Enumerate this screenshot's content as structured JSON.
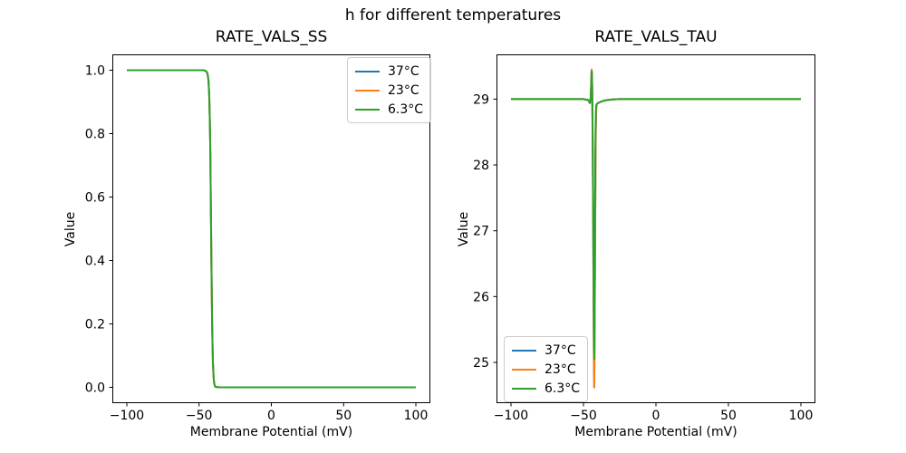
{
  "figure": {
    "suptitle": "h for different temperatures",
    "background_color": "#ffffff",
    "text_color": "#000000"
  },
  "chart_data": [
    {
      "type": "line",
      "title": "RATE_VALS_SS",
      "xlabel": "Membrane Potential (mV)",
      "ylabel": "Value",
      "xlim": [
        -110,
        110
      ],
      "ylim": [
        -0.05,
        1.05
      ],
      "xticks": [
        -100,
        -50,
        0,
        50,
        100
      ],
      "xtick_labels": [
        "−100",
        "−50",
        "0",
        "50",
        "100"
      ],
      "yticks": [
        0.0,
        0.2,
        0.4,
        0.6,
        0.8,
        1.0
      ],
      "ytick_labels": [
        "0.0",
        "0.2",
        "0.4",
        "0.6",
        "0.8",
        "1.0"
      ],
      "grid": false,
      "legend_position": "upper right",
      "series": [
        {
          "name": "37°C",
          "color": "#1f77b4",
          "points": [
            [
              -100,
              1.0
            ],
            [
              -80,
              1.0
            ],
            [
              -60,
              1.0
            ],
            [
              -50,
              1.0
            ],
            [
              -47,
              1.0
            ],
            [
              -46,
              0.999
            ],
            [
              -45.5,
              0.998
            ],
            [
              -45,
              0.996
            ],
            [
              -44.5,
              0.993
            ],
            [
              -44,
              0.985
            ],
            [
              -43.5,
              0.968
            ],
            [
              -43,
              0.925
            ],
            [
              -42.5,
              0.83
            ],
            [
              -42.2,
              0.73
            ],
            [
              -42,
              0.64
            ],
            [
              -41.8,
              0.55
            ],
            [
              -41.7,
              0.5
            ],
            [
              -41.5,
              0.41
            ],
            [
              -41.2,
              0.28
            ],
            [
              -41,
              0.21
            ],
            [
              -40.7,
              0.13
            ],
            [
              -40.4,
              0.08
            ],
            [
              -40,
              0.035
            ],
            [
              -39.6,
              0.015
            ],
            [
              -39.2,
              0.006
            ],
            [
              -38.8,
              0.002
            ],
            [
              -38,
              0.001
            ],
            [
              -36,
              0.0
            ],
            [
              -30,
              0.0
            ],
            [
              -20,
              0.0
            ],
            [
              0,
              0.0
            ],
            [
              50,
              0.0
            ],
            [
              100,
              0.0
            ]
          ]
        },
        {
          "name": "23°C",
          "color": "#ff7f0e",
          "points": [
            [
              -100,
              1.0
            ],
            [
              -80,
              1.0
            ],
            [
              -60,
              1.0
            ],
            [
              -50,
              1.0
            ],
            [
              -47,
              1.0
            ],
            [
              -46,
              0.999
            ],
            [
              -45.5,
              0.998
            ],
            [
              -45,
              0.996
            ],
            [
              -44.5,
              0.993
            ],
            [
              -44,
              0.985
            ],
            [
              -43.5,
              0.968
            ],
            [
              -43,
              0.925
            ],
            [
              -42.5,
              0.83
            ],
            [
              -42.2,
              0.73
            ],
            [
              -42,
              0.64
            ],
            [
              -41.8,
              0.55
            ],
            [
              -41.7,
              0.5
            ],
            [
              -41.5,
              0.41
            ],
            [
              -41.2,
              0.28
            ],
            [
              -41,
              0.21
            ],
            [
              -40.7,
              0.13
            ],
            [
              -40.4,
              0.08
            ],
            [
              -40,
              0.035
            ],
            [
              -39.6,
              0.015
            ],
            [
              -39.2,
              0.006
            ],
            [
              -38.8,
              0.002
            ],
            [
              -38,
              0.001
            ],
            [
              -36,
              0.0
            ],
            [
              -30,
              0.0
            ],
            [
              -20,
              0.0
            ],
            [
              0,
              0.0
            ],
            [
              50,
              0.0
            ],
            [
              100,
              0.0
            ]
          ]
        },
        {
          "name": "6.3°C",
          "color": "#2ca02c",
          "points": [
            [
              -100,
              1.0
            ],
            [
              -80,
              1.0
            ],
            [
              -60,
              1.0
            ],
            [
              -50,
              1.0
            ],
            [
              -47,
              1.0
            ],
            [
              -46,
              0.999
            ],
            [
              -45.5,
              0.998
            ],
            [
              -45,
              0.996
            ],
            [
              -44.5,
              0.993
            ],
            [
              -44,
              0.985
            ],
            [
              -43.5,
              0.968
            ],
            [
              -43,
              0.925
            ],
            [
              -42.5,
              0.83
            ],
            [
              -42.2,
              0.73
            ],
            [
              -42,
              0.64
            ],
            [
              -41.8,
              0.55
            ],
            [
              -41.7,
              0.5
            ],
            [
              -41.5,
              0.41
            ],
            [
              -41.2,
              0.28
            ],
            [
              -41,
              0.21
            ],
            [
              -40.7,
              0.13
            ],
            [
              -40.4,
              0.08
            ],
            [
              -40,
              0.035
            ],
            [
              -39.6,
              0.015
            ],
            [
              -39.2,
              0.006
            ],
            [
              -38.8,
              0.002
            ],
            [
              -38,
              0.001
            ],
            [
              -36,
              0.0
            ],
            [
              -30,
              0.0
            ],
            [
              -20,
              0.0
            ],
            [
              0,
              0.0
            ],
            [
              50,
              0.0
            ],
            [
              100,
              0.0
            ]
          ]
        }
      ]
    },
    {
      "type": "line",
      "title": "RATE_VALS_TAU",
      "xlabel": "Membrane Potential (mV)",
      "ylabel": "Value",
      "xlim": [
        -110,
        110
      ],
      "ylim": [
        24.38,
        29.68
      ],
      "xticks": [
        -100,
        -50,
        0,
        50,
        100
      ],
      "xtick_labels": [
        "−100",
        "−50",
        "0",
        "50",
        "100"
      ],
      "yticks": [
        25,
        26,
        27,
        28,
        29
      ],
      "ytick_labels": [
        "25",
        "26",
        "27",
        "28",
        "29"
      ],
      "grid": false,
      "legend_position": "lower left",
      "series": [
        {
          "name": "37°C",
          "color": "#1f77b4",
          "points": [
            [
              -100,
              29.0
            ],
            [
              -80,
              29.0
            ],
            [
              -60,
              29.0
            ],
            [
              -50,
              29.0
            ],
            [
              -48,
              28.99
            ],
            [
              -47,
              28.99
            ],
            [
              -46.2,
              28.97
            ],
            [
              -45.7,
              28.94
            ],
            [
              -45.3,
              28.96
            ],
            [
              -45.0,
              29.03
            ],
            [
              -44.8,
              29.13
            ],
            [
              -44.6,
              29.27
            ],
            [
              -44.4,
              29.45
            ],
            [
              -44.2,
              29.4
            ],
            [
              -44.0,
              29.2
            ],
            [
              -43.8,
              28.8
            ],
            [
              -43.6,
              28.2
            ],
            [
              -43.4,
              27.4
            ],
            [
              -43.2,
              26.6
            ],
            [
              -43.0,
              25.8
            ],
            [
              -42.8,
              25.1
            ],
            [
              -42.55,
              24.62
            ],
            [
              -42.3,
              25.3
            ],
            [
              -42.1,
              26.2
            ],
            [
              -41.9,
              27.2
            ],
            [
              -41.7,
              28.0
            ],
            [
              -41.5,
              28.55
            ],
            [
              -41.3,
              28.8
            ],
            [
              -41.1,
              28.89
            ],
            [
              -40.9,
              28.92
            ],
            [
              -40.5,
              28.93
            ],
            [
              -40,
              28.94
            ],
            [
              -39,
              28.95
            ],
            [
              -38,
              28.96
            ],
            [
              -36,
              28.975
            ],
            [
              -34,
              28.985
            ],
            [
              -32,
              28.99
            ],
            [
              -30,
              28.995
            ],
            [
              -25,
              29.0
            ],
            [
              -20,
              29.0
            ],
            [
              0,
              29.0
            ],
            [
              50,
              29.0
            ],
            [
              100,
              29.0
            ]
          ]
        },
        {
          "name": "23°C",
          "color": "#ff7f0e",
          "points": [
            [
              -100,
              29.0
            ],
            [
              -80,
              29.0
            ],
            [
              -60,
              29.0
            ],
            [
              -50,
              29.0
            ],
            [
              -48,
              28.99
            ],
            [
              -47,
              28.99
            ],
            [
              -46.2,
              28.97
            ],
            [
              -45.7,
              28.94
            ],
            [
              -45.3,
              28.96
            ],
            [
              -45.0,
              29.03
            ],
            [
              -44.8,
              29.13
            ],
            [
              -44.6,
              29.27
            ],
            [
              -44.4,
              29.45
            ],
            [
              -44.2,
              29.4
            ],
            [
              -44.0,
              29.2
            ],
            [
              -43.8,
              28.8
            ],
            [
              -43.6,
              28.2
            ],
            [
              -43.4,
              27.4
            ],
            [
              -43.2,
              26.6
            ],
            [
              -43.0,
              25.8
            ],
            [
              -42.8,
              25.1
            ],
            [
              -42.55,
              24.62
            ],
            [
              -42.3,
              25.3
            ],
            [
              -42.1,
              26.2
            ],
            [
              -41.9,
              27.2
            ],
            [
              -41.7,
              28.0
            ],
            [
              -41.5,
              28.55
            ],
            [
              -41.3,
              28.8
            ],
            [
              -41.1,
              28.89
            ],
            [
              -40.9,
              28.92
            ],
            [
              -40.5,
              28.93
            ],
            [
              -40,
              28.94
            ],
            [
              -39,
              28.95
            ],
            [
              -38,
              28.96
            ],
            [
              -36,
              28.975
            ],
            [
              -34,
              28.985
            ],
            [
              -32,
              28.99
            ],
            [
              -30,
              28.995
            ],
            [
              -25,
              29.0
            ],
            [
              -20,
              29.0
            ],
            [
              0,
              29.0
            ],
            [
              50,
              29.0
            ],
            [
              100,
              29.0
            ]
          ]
        },
        {
          "name": "6.3°C",
          "color": "#2ca02c",
          "points": [
            [
              -100,
              29.0
            ],
            [
              -80,
              29.0
            ],
            [
              -60,
              29.0
            ],
            [
              -50,
              29.0
            ],
            [
              -48,
              28.99
            ],
            [
              -47,
              28.99
            ],
            [
              -46.2,
              28.97
            ],
            [
              -45.7,
              28.94
            ],
            [
              -45.3,
              28.96
            ],
            [
              -45.0,
              29.03
            ],
            [
              -44.8,
              29.12
            ],
            [
              -44.6,
              29.25
            ],
            [
              -44.4,
              29.42
            ],
            [
              -44.2,
              29.38
            ],
            [
              -44.0,
              29.2
            ],
            [
              -43.8,
              28.85
            ],
            [
              -43.6,
              28.3
            ],
            [
              -43.4,
              27.6
            ],
            [
              -43.2,
              26.9
            ],
            [
              -43.0,
              26.2
            ],
            [
              -42.8,
              25.6
            ],
            [
              -42.6,
              25.05
            ],
            [
              -42.4,
              25.5
            ],
            [
              -42.2,
              26.3
            ],
            [
              -42.0,
              27.3
            ],
            [
              -41.8,
              28.1
            ],
            [
              -41.6,
              28.6
            ],
            [
              -41.4,
              28.83
            ],
            [
              -41.2,
              28.9
            ],
            [
              -41.0,
              28.92
            ],
            [
              -40.5,
              28.93
            ],
            [
              -40,
              28.94
            ],
            [
              -39,
              28.95
            ],
            [
              -38,
              28.96
            ],
            [
              -36,
              28.975
            ],
            [
              -34,
              28.985
            ],
            [
              -32,
              28.99
            ],
            [
              -30,
              28.995
            ],
            [
              -25,
              29.0
            ],
            [
              -20,
              29.0
            ],
            [
              0,
              29.0
            ],
            [
              50,
              29.0
            ],
            [
              100,
              29.0
            ]
          ]
        }
      ]
    }
  ]
}
